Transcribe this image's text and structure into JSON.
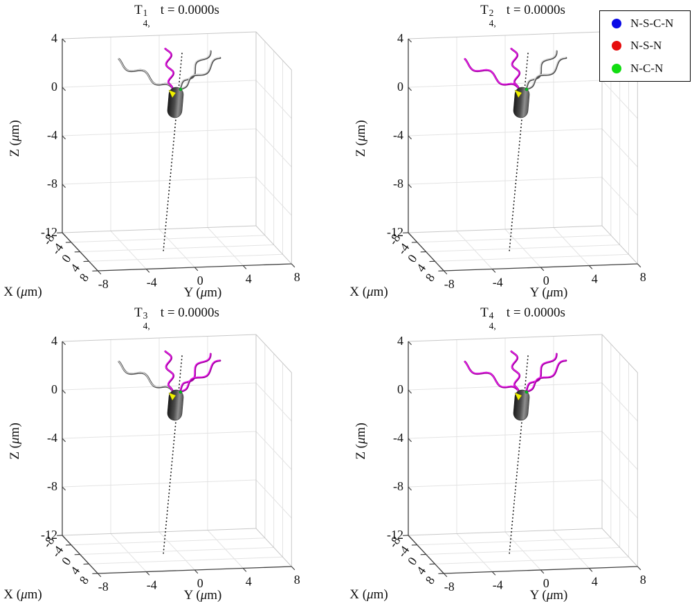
{
  "legend": {
    "items": [
      {
        "label": "N-S-C-N",
        "marker": "dot",
        "marker_color": "#0a0ae6"
      },
      {
        "label": "N-S-N",
        "marker": "dot",
        "marker_color": "#e60d0d"
      },
      {
        "label": "N-C-N",
        "marker": "dot",
        "marker_color": "#12dd12"
      }
    ]
  },
  "chart_data": {
    "type": "scatter",
    "projection": "3d",
    "grid": true,
    "description": "Four 3D snapshots of a flagellated bacterium model at t=0; each panel shows a capsule-shaped cell body, four wavy flagella (magenta = selected bundle, gray = others), and a dotted orientation axis line.",
    "axes": {
      "xlabel": "X (μm)",
      "ylabel": "Y (μm)",
      "zlabel": "Z (μm)",
      "xlim": [
        -8,
        8
      ],
      "ylim": [
        -8,
        8
      ],
      "zlim": [
        -12,
        4
      ],
      "xticks": [
        -8,
        -4,
        0,
        4,
        8
      ],
      "yticks": [
        -8,
        -4,
        0,
        4,
        8
      ],
      "zticks": [
        4,
        0,
        -4,
        -8,
        -12
      ]
    },
    "palette": {
      "flagellum_magenta": "#ee22ee",
      "flagellum_magenta_shade": "#9c009c",
      "flagellum_gray": "#d8d8d8",
      "flagellum_gray_shade": "#4f4f4f",
      "body_dark": "#1a1a1a",
      "body_light": "#8f8f8f",
      "grid_color": "#e3e3e3",
      "box_edge_color": "#c7c7c7",
      "axis_color": "#3f3f3f",
      "dotted_line_color": "#151515",
      "marker_triangle": "#f2f200",
      "marker_dot": "#00c322"
    },
    "subplots": [
      {
        "title": {
          "base": "T",
          "sup": "1",
          "sub": "4,",
          "time": "t = 0.0000s"
        },
        "bacterium": {
          "body": "capsule",
          "orientation_line": "dotted",
          "head_markers": [
            "yellow-triangle",
            "green-dot"
          ]
        },
        "flagella": [
          {
            "position": "left",
            "color": "gray"
          },
          {
            "position": "center",
            "color": "magenta"
          },
          {
            "position": "right-inner",
            "color": "gray"
          },
          {
            "position": "right-outer",
            "color": "gray"
          }
        ]
      },
      {
        "title": {
          "base": "T",
          "sup": "2",
          "sub": "4,",
          "time": "t = 0.0000s"
        },
        "bacterium": {
          "body": "capsule",
          "orientation_line": "dotted",
          "head_markers": [
            "yellow-triangle",
            "green-dot"
          ]
        },
        "flagella": [
          {
            "position": "left",
            "color": "magenta"
          },
          {
            "position": "center",
            "color": "magenta"
          },
          {
            "position": "right-inner",
            "color": "gray"
          },
          {
            "position": "right-outer",
            "color": "gray"
          }
        ]
      },
      {
        "title": {
          "base": "T",
          "sup": "3",
          "sub": "4,",
          "time": "t = 0.0000s"
        },
        "bacterium": {
          "body": "capsule",
          "orientation_line": "dotted",
          "head_markers": [
            "yellow-triangle",
            "green-dot"
          ]
        },
        "flagella": [
          {
            "position": "left",
            "color": "gray"
          },
          {
            "position": "center",
            "color": "magenta"
          },
          {
            "position": "right-inner",
            "color": "magenta"
          },
          {
            "position": "right-outer",
            "color": "magenta"
          }
        ]
      },
      {
        "title": {
          "base": "T",
          "sup": "4",
          "sub": "4,",
          "time": "t = 0.0000s"
        },
        "bacterium": {
          "body": "capsule",
          "orientation_line": "dotted",
          "head_markers": [
            "yellow-triangle",
            "green-dot"
          ]
        },
        "flagella": [
          {
            "position": "left",
            "color": "magenta"
          },
          {
            "position": "center",
            "color": "magenta"
          },
          {
            "position": "right-inner",
            "color": "magenta"
          },
          {
            "position": "right-outer",
            "color": "magenta"
          }
        ]
      }
    ]
  }
}
